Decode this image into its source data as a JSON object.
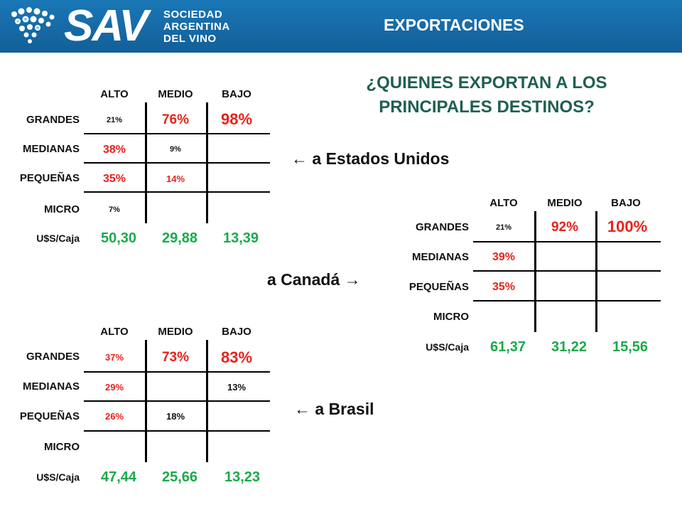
{
  "header": {
    "logo_text": "SAV",
    "logo_sub": [
      "SOCIEDAD",
      "ARGENTINA",
      "DEL VINO"
    ],
    "title": "EXPORTACIONES"
  },
  "heading": [
    "¿QUIENES EXPORTAN A LOS",
    "PRINCIPALES DESTINOS?"
  ],
  "colors": {
    "header_bg": "#1a77b6",
    "percent_red": "#e8221b",
    "price_green": "#1aaa4a",
    "heading_green": "#1f5f52"
  },
  "tables": {
    "estados_unidos": {
      "destination_label": "← a Estados Unidos",
      "columns": [
        "ALTO",
        "MEDIO",
        "BAJO"
      ],
      "rows": [
        {
          "label": "GRANDES",
          "cells": [
            "21%",
            "76%",
            "98%"
          ]
        },
        {
          "label": "MEDIANAS",
          "cells": [
            "38%",
            "9%",
            ""
          ]
        },
        {
          "label": "PEQUEÑAS",
          "cells": [
            "35%",
            "14%",
            ""
          ]
        },
        {
          "label": "MICRO",
          "cells": [
            "7%",
            "",
            ""
          ]
        }
      ],
      "price_label": "U$S/Caja",
      "prices": [
        "50,30",
        "29,88",
        "13,39"
      ]
    },
    "canada": {
      "destination_label": "a Canadá →",
      "columns": [
        "ALTO",
        "MEDIO",
        "BAJO"
      ],
      "rows": [
        {
          "label": "GRANDES",
          "cells": [
            "21%",
            "92%",
            "100%"
          ]
        },
        {
          "label": "MEDIANAS",
          "cells": [
            "39%",
            "",
            ""
          ]
        },
        {
          "label": "PEQUEÑAS",
          "cells": [
            "35%",
            "",
            ""
          ]
        },
        {
          "label": "MICRO",
          "cells": [
            "",
            "",
            ""
          ]
        }
      ],
      "price_label": "U$S/Caja",
      "prices": [
        "61,37",
        "31,22",
        "15,56"
      ]
    },
    "brasil": {
      "destination_label": "← a Brasil",
      "columns": [
        "ALTO",
        "MEDIO",
        "BAJO"
      ],
      "rows": [
        {
          "label": "GRANDES",
          "cells": [
            "37%",
            "73%",
            "83%"
          ]
        },
        {
          "label": "MEDIANAS",
          "cells": [
            "29%",
            "",
            "13%"
          ]
        },
        {
          "label": "PEQUEÑAS",
          "cells": [
            "26%",
            "18%",
            ""
          ]
        },
        {
          "label": "MICRO",
          "cells": [
            "",
            "",
            ""
          ]
        }
      ],
      "price_label": "U$S/Caja",
      "prices": [
        "47,44",
        "25,66",
        "13,23"
      ]
    }
  }
}
